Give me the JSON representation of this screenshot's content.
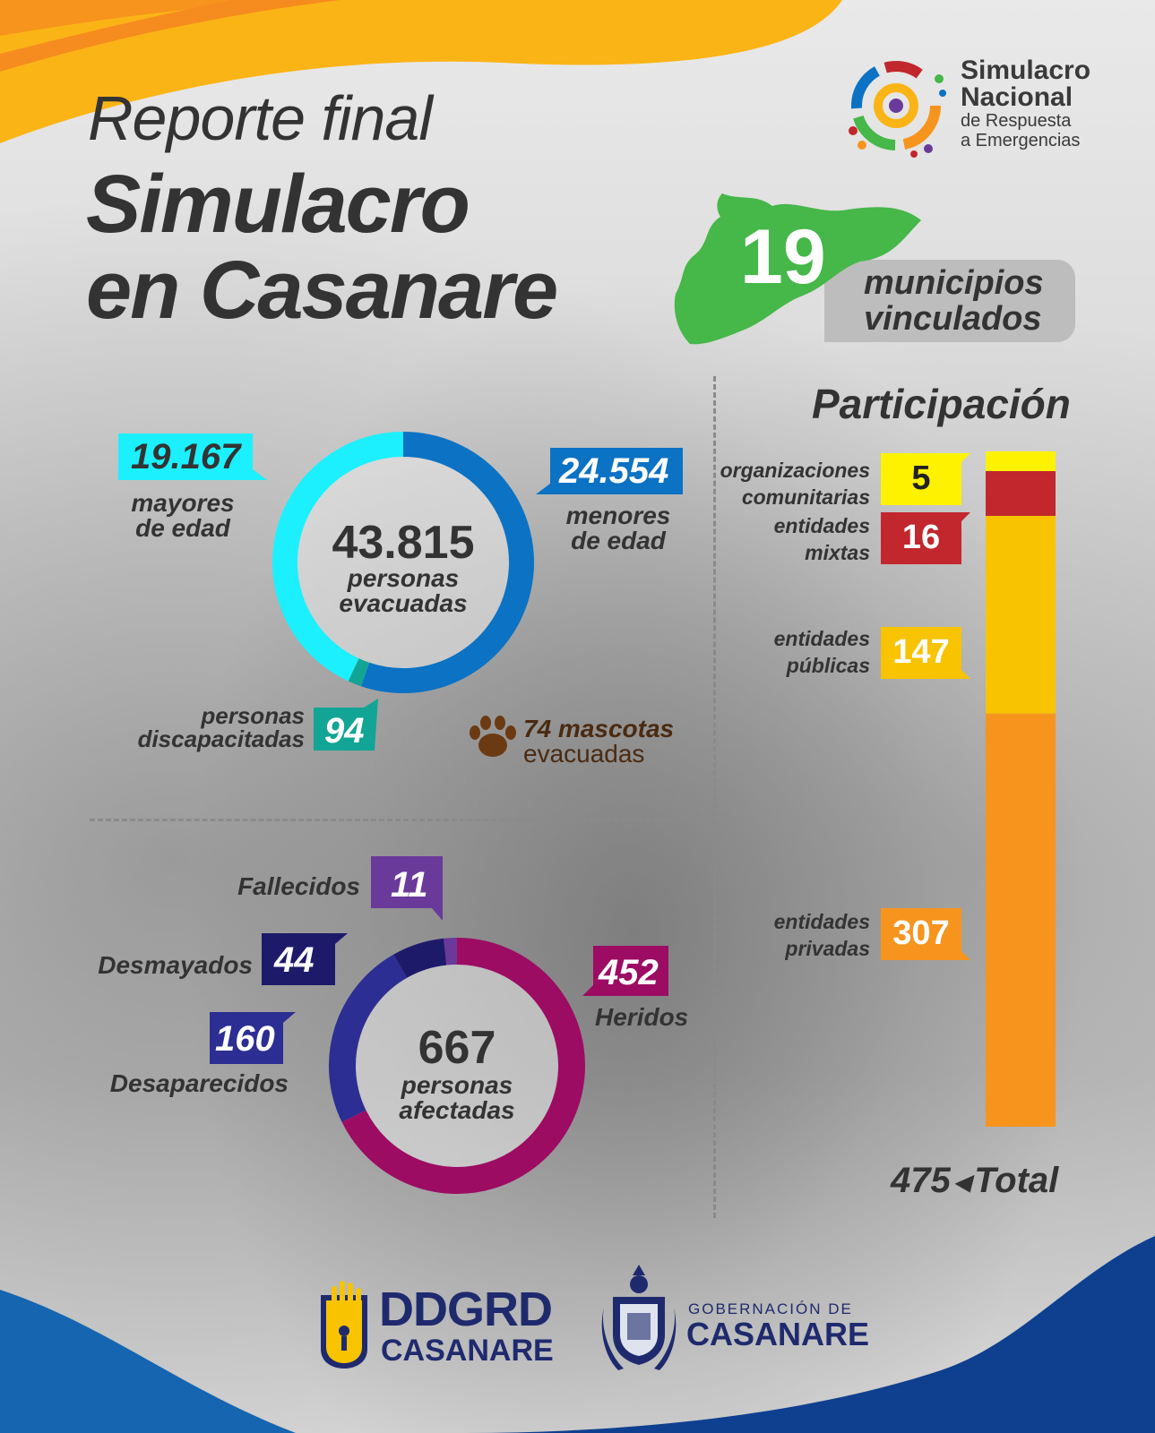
{
  "title": {
    "line1": "Reporte final",
    "line2": "Simulacro",
    "line3": "en Casanare"
  },
  "logo_top": {
    "line1": "Simulacro",
    "line2": "Nacional",
    "line3": "de Respuesta",
    "line4": "a Emergencias"
  },
  "municipios": {
    "value": "19",
    "label1": "municipios",
    "label2": "vinculados"
  },
  "evacuados": {
    "total": "43.815",
    "center_label1": "personas",
    "center_label2": "evacuadas",
    "mayores": {
      "value": "19.167",
      "label1": "mayores",
      "label2": "de edad"
    },
    "menores": {
      "value": "24.554",
      "label1": "menores",
      "label2": "de edad"
    },
    "discapacitadas": {
      "value": "94",
      "label1": "personas",
      "label2": "discapacitadas"
    },
    "mascotas": {
      "value_label": "74 mascotas",
      "label2": "evacuadas"
    }
  },
  "afectados": {
    "total": "667",
    "center_label1": "personas",
    "center_label2": "afectadas",
    "fallecidos": {
      "value": "11",
      "label": "Fallecidos"
    },
    "desmayados": {
      "value": "44",
      "label": "Desmayados"
    },
    "desaparecidos": {
      "value": "160",
      "label": "Desaparecidos"
    },
    "heridos": {
      "value": "452",
      "label": "Heridos"
    }
  },
  "participacion": {
    "title": "Participación",
    "total_value": "475",
    "total_label": "Total",
    "items": [
      {
        "label1": "organizaciones",
        "label2": "comunitarias",
        "value": "5"
      },
      {
        "label1": "entidades",
        "label2": "mixtas",
        "value": "16"
      },
      {
        "label1": "entidades",
        "label2": "públicas",
        "value": "147"
      },
      {
        "label1": "entidades",
        "label2": "privadas",
        "value": "307"
      }
    ]
  },
  "footer": {
    "ddgrd_line1": "DDGRD",
    "ddgrd_line2": "CASANARE",
    "gob_line1": "GOBERNACIÓN DE",
    "gob_line2": "CASANARE"
  },
  "colors": {
    "mayores": "#1cf0ff",
    "menores": "#0b72c4",
    "discapacitadas": "#12a595",
    "fallecidos": "#6a3a9a",
    "desmayados": "#1e1a6a",
    "desaparecidos": "#2c2e93",
    "heridos": "#9c0c63",
    "comunitarias": "#fff200",
    "mixtas": "#c1272d",
    "publicas": "#f8c300",
    "privadas": "#f7941d",
    "mascotas": "#6b3a13",
    "municipios_map": "#46b749"
  },
  "chart_data": [
    {
      "type": "pie",
      "title": "personas evacuadas",
      "total": 43815,
      "categories": [
        "mayores de edad",
        "menores de edad",
        "personas discapacitadas"
      ],
      "values": [
        19167,
        24554,
        94
      ]
    },
    {
      "type": "pie",
      "title": "personas afectadas",
      "total": 667,
      "categories": [
        "Heridos",
        "Desaparecidos",
        "Desmayados",
        "Fallecidos"
      ],
      "values": [
        452,
        160,
        44,
        11
      ]
    },
    {
      "type": "bar",
      "title": "Participación",
      "categories": [
        "organizaciones comunitarias",
        "entidades mixtas",
        "entidades públicas",
        "entidades privadas"
      ],
      "values": [
        5,
        16,
        147,
        307
      ],
      "total": 475
    }
  ]
}
